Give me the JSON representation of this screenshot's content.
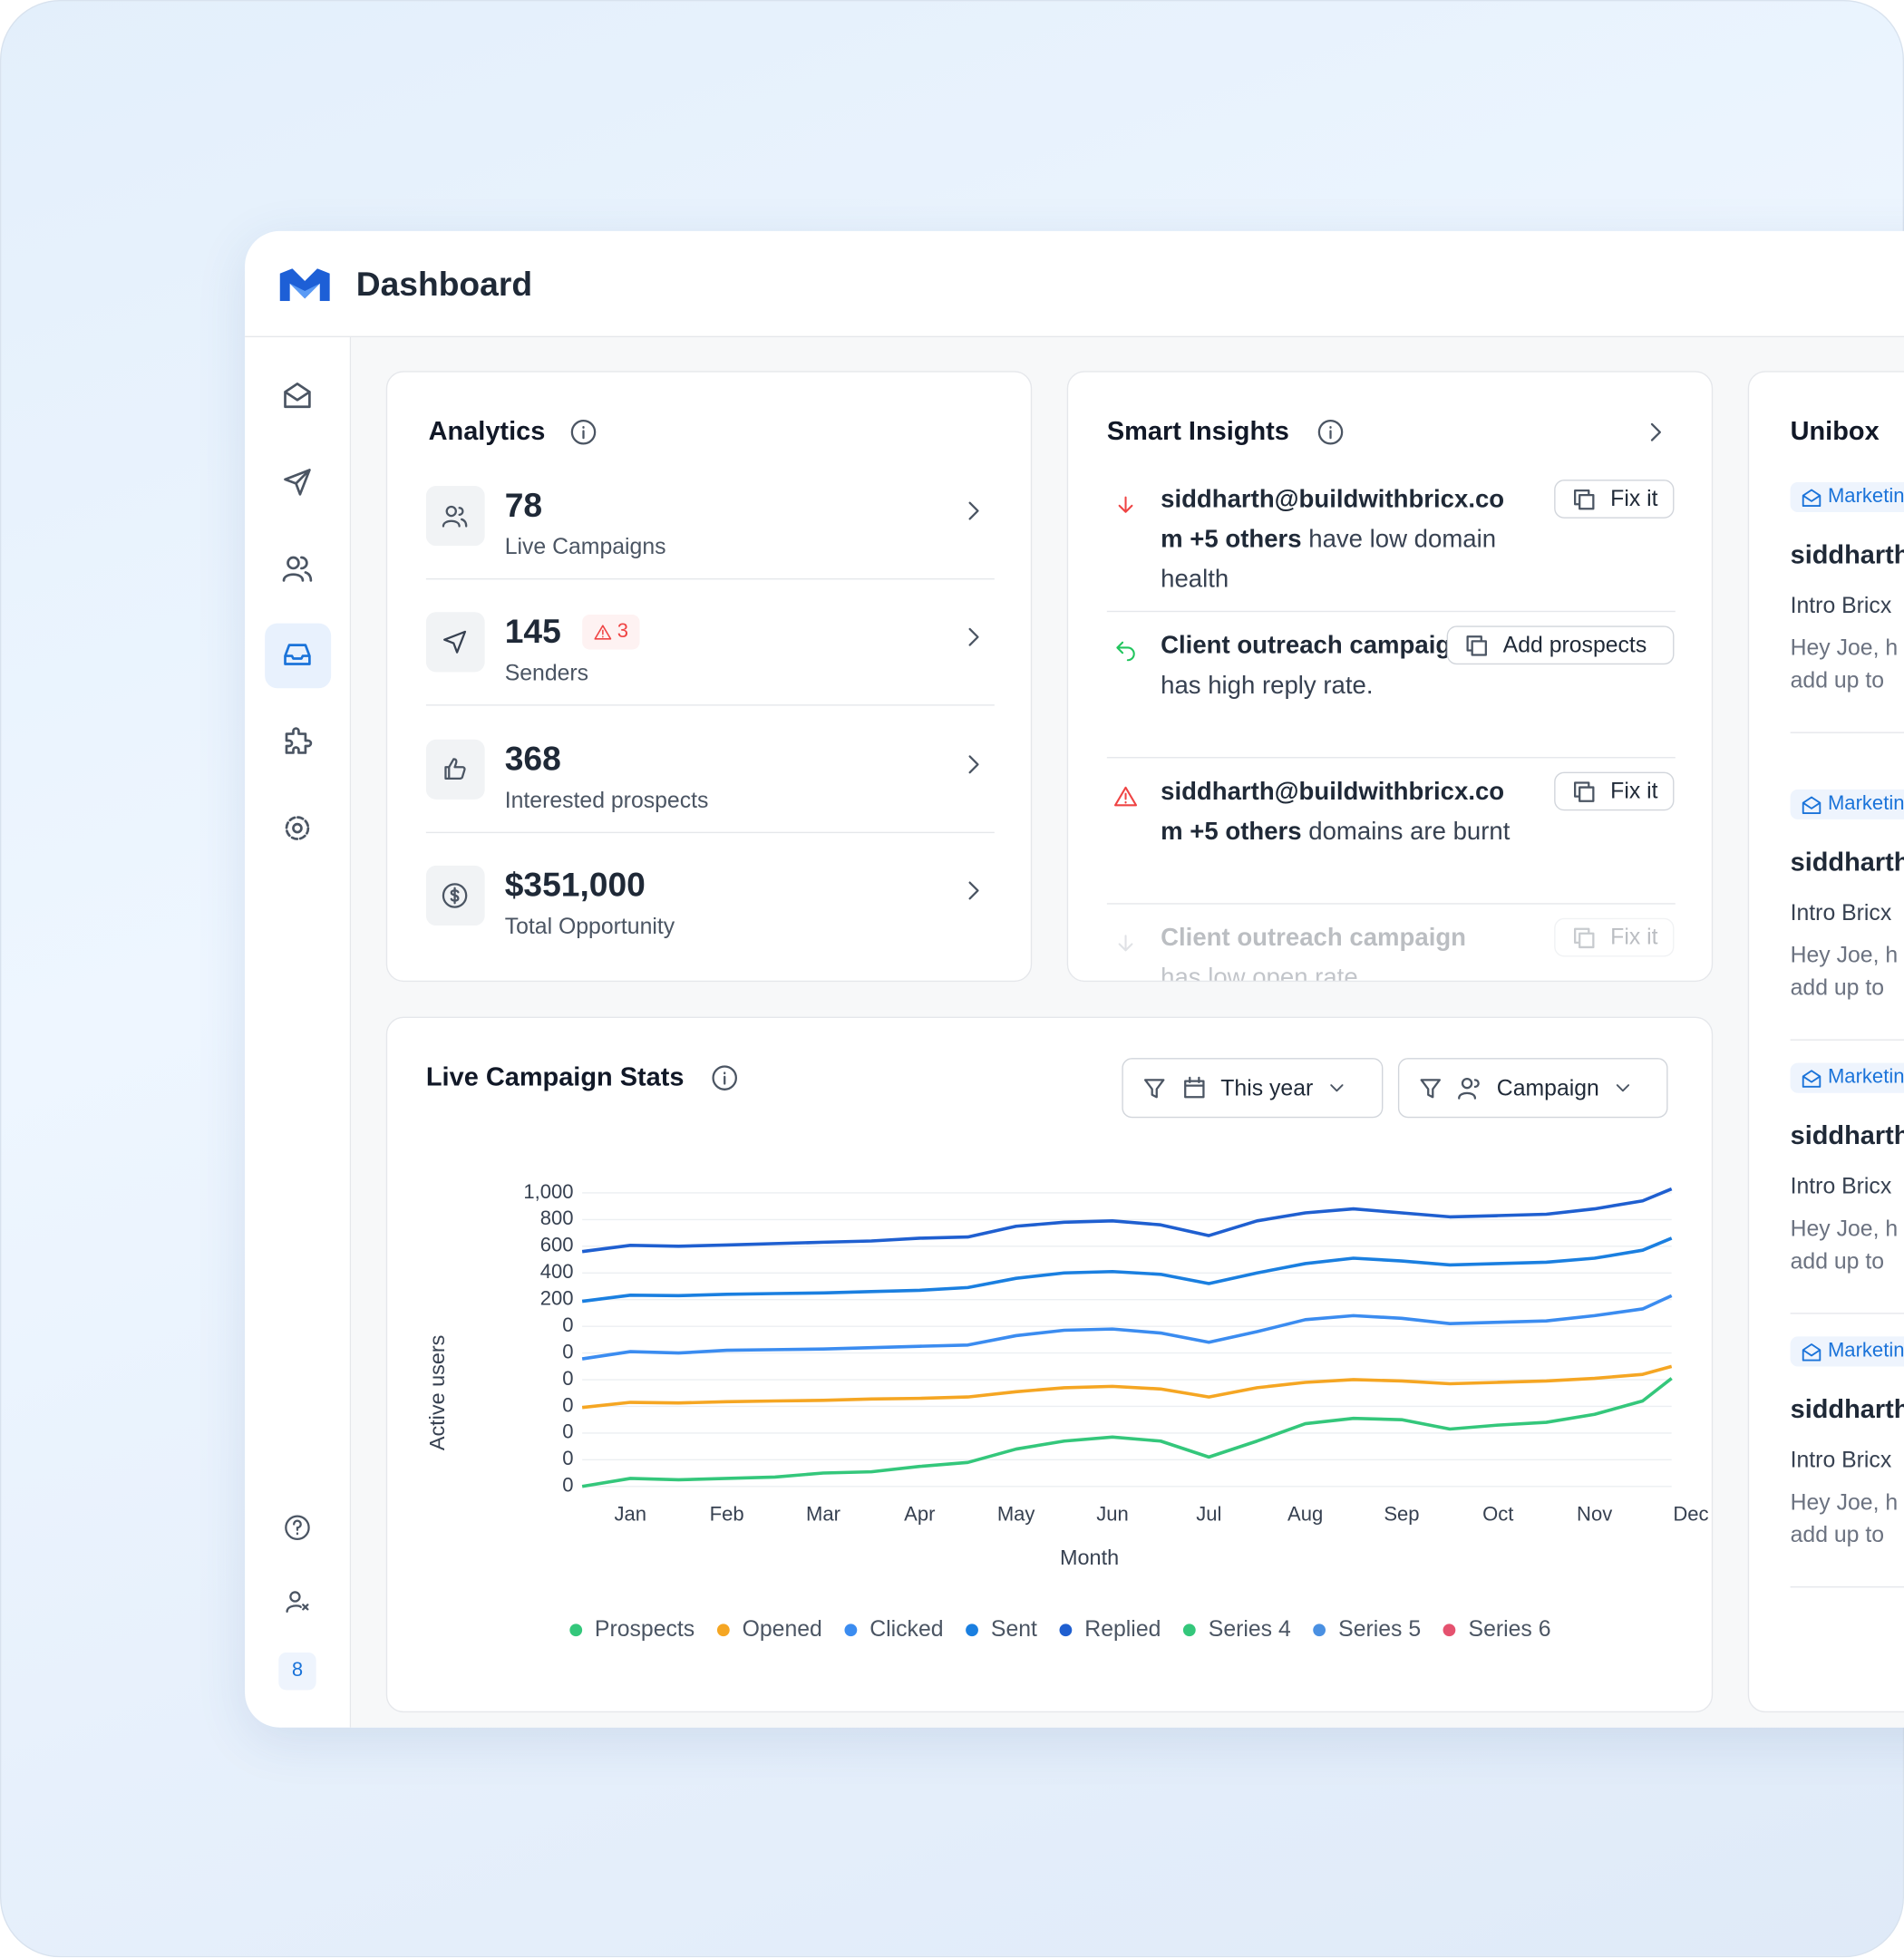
{
  "header": {
    "title": "Dashboard"
  },
  "sidebar": {
    "badge": "8"
  },
  "analytics": {
    "title": "Analytics",
    "items": [
      {
        "value": "78",
        "label": "Live Campaigns"
      },
      {
        "value": "145",
        "label": "Senders",
        "badge": "3"
      },
      {
        "value": "368",
        "label": "Interested prospects"
      },
      {
        "value": "$351,000",
        "label": "Total Opportunity"
      }
    ]
  },
  "insights": {
    "title": "Smart Insights",
    "items": [
      {
        "bold": "siddharth@buildwithbricx.com +5 others",
        "text": "have low domain health",
        "button": "Fix it"
      },
      {
        "bold": "Client outreach campaign",
        "text": "has high reply rate.",
        "button": "Add prospects"
      },
      {
        "bold": "siddharth@buildwithbricx.com +5 others",
        "text": "domains are burnt",
        "button": "Fix it"
      },
      {
        "bold": "Client outreach campaign",
        "text": "has low open rate",
        "button": "Fix it"
      }
    ]
  },
  "unibox": {
    "title": "Unibox",
    "items": [
      {
        "tag": "Marketing",
        "name": "siddharth",
        "subject": "Intro Bricx",
        "preview": [
          "Hey Joe, h",
          "add up to"
        ]
      },
      {
        "tag": "Marketing",
        "name": "siddharth",
        "subject": "Intro Bricx",
        "preview": [
          "Hey Joe, h",
          "add up to"
        ]
      },
      {
        "tag": "Marketing",
        "name": "siddharth",
        "subject": "Intro Bricx",
        "preview": [
          "Hey Joe, h",
          "add up to"
        ]
      },
      {
        "tag": "Marketing",
        "name": "siddharth",
        "subject": "Intro Bricx",
        "preview": [
          "Hey Joe, h",
          "add up to"
        ]
      }
    ]
  },
  "stats": {
    "title": "Live Campaign Stats",
    "filters": [
      "This year",
      "Campaign"
    ]
  },
  "chart_data": {
    "type": "line",
    "x_label": "Month",
    "y_label": "Active users",
    "x": [
      -0.5,
      0,
      0.5,
      1,
      1.5,
      2,
      2.5,
      3,
      3.5,
      4,
      4.5,
      5,
      5.5,
      6,
      6.5,
      7,
      7.5,
      8,
      8.5,
      9,
      9.5,
      10,
      10.5,
      10.8
    ],
    "xlim": [
      -0.5,
      10.8
    ],
    "xticks": [
      {
        "value": 0,
        "label": "Jan"
      },
      {
        "value": 1,
        "label": "Feb"
      },
      {
        "value": 2,
        "label": "Mar"
      },
      {
        "value": 3,
        "label": "Apr"
      },
      {
        "value": 4,
        "label": "May"
      },
      {
        "value": 5,
        "label": "Jun"
      },
      {
        "value": 6,
        "label": "Jul"
      },
      {
        "value": 7,
        "label": "Aug"
      },
      {
        "value": 8,
        "label": "Sep"
      },
      {
        "value": 9,
        "label": "Oct"
      },
      {
        "value": 10,
        "label": "Nov"
      },
      {
        "value": 11,
        "label": "Dec"
      }
    ],
    "ylim": [
      -1200,
      1000
    ],
    "yticks": [
      {
        "value": 1000,
        "label": "1,000"
      },
      800,
      600,
      400,
      200,
      0
    ],
    "extra_y_labels": [
      "0",
      "0",
      "0",
      "0",
      "0",
      "0"
    ],
    "grid": true,
    "series": [
      {
        "name": "Prospects",
        "color": "#34c77b",
        "values": [
          -1200,
          -1140,
          -1150,
          -1140,
          -1130,
          -1100,
          -1090,
          -1050,
          -1020,
          -920,
          -860,
          -830,
          -860,
          -980,
          -860,
          -730,
          -690,
          -700,
          -770,
          -740,
          -720,
          -660,
          -560,
          -390
        ]
      },
      {
        "name": "Opened",
        "color": "#f5a623",
        "values": [
          -608,
          -570,
          -575,
          -565,
          -560,
          -555,
          -545,
          -540,
          -530,
          -490,
          -460,
          -450,
          -470,
          -530,
          -460,
          -420,
          -400,
          -410,
          -430,
          -420,
          -410,
          -390,
          -360,
          -300
        ]
      },
      {
        "name": "Clicked",
        "color": "#3b8cf0",
        "values": [
          -244,
          -190,
          -200,
          -180,
          -175,
          -170,
          -160,
          -150,
          -140,
          -70,
          -30,
          -20,
          -50,
          -120,
          -40,
          50,
          80,
          60,
          20,
          30,
          40,
          80,
          130,
          230
        ]
      },
      {
        "name": "Sent",
        "color": "#1a7fe0",
        "values": [
          187,
          233,
          230,
          240,
          245,
          250,
          260,
          270,
          290,
          360,
          400,
          410,
          390,
          320,
          400,
          470,
          510,
          490,
          460,
          470,
          480,
          510,
          570,
          660
        ]
      },
      {
        "name": "Replied",
        "color": "#1f5fd0",
        "values": [
          560,
          607,
          600,
          610,
          620,
          630,
          640,
          660,
          670,
          750,
          780,
          790,
          760,
          680,
          790,
          850,
          880,
          850,
          820,
          830,
          840,
          880,
          940,
          1030
        ]
      },
      {
        "name": "Series 4",
        "color": "#34c77b",
        "values": [
          null,
          null,
          null,
          null,
          null,
          null,
          null,
          null,
          null,
          null,
          null,
          null,
          null,
          null,
          null,
          null,
          null,
          null,
          null,
          null,
          null,
          null,
          null,
          null
        ]
      },
      {
        "name": "Series 5",
        "color": "#4a90e2",
        "values": [
          null,
          null,
          null,
          null,
          null,
          null,
          null,
          null,
          null,
          null,
          null,
          null,
          null,
          null,
          null,
          null,
          null,
          null,
          null,
          null,
          null,
          null,
          null,
          null
        ]
      },
      {
        "name": "Series 6",
        "color": "#e5526f",
        "values": [
          null,
          null,
          null,
          null,
          null,
          null,
          null,
          null,
          null,
          null,
          null,
          null,
          null,
          null,
          null,
          null,
          null,
          null,
          null,
          null,
          null,
          null,
          null,
          null
        ]
      }
    ]
  }
}
